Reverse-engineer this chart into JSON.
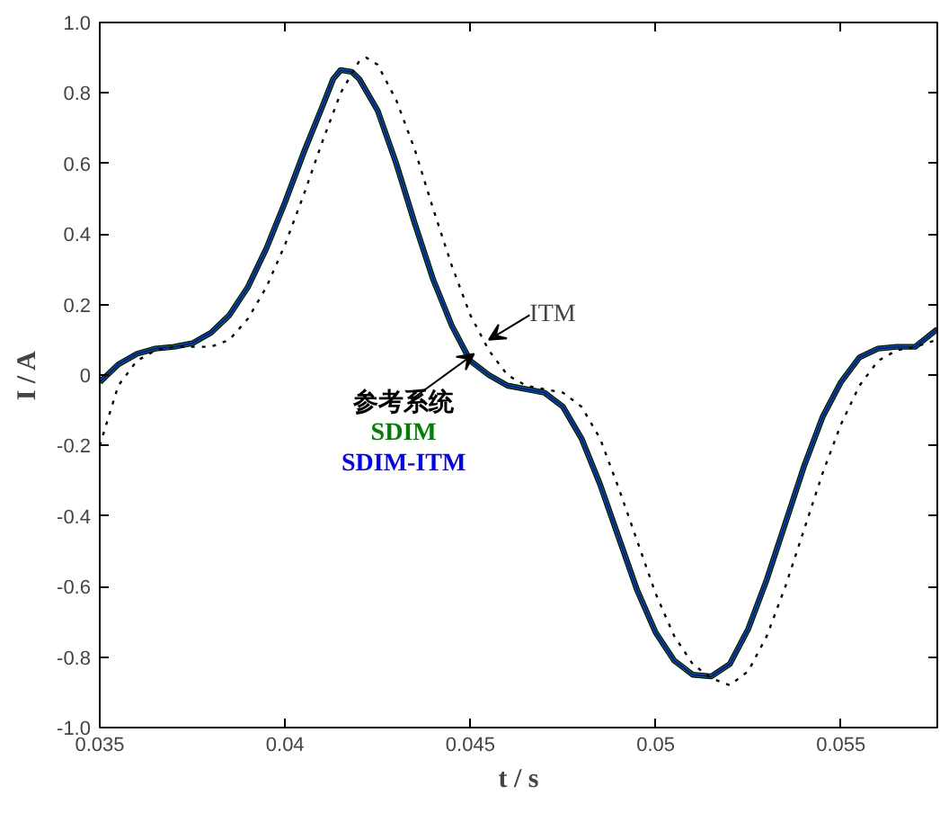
{
  "chart_data": {
    "type": "line",
    "xlabel": "t / s",
    "ylabel": "I / A",
    "xlim": [
      0.035,
      0.0576
    ],
    "ylim": [
      -1.0,
      1.0
    ],
    "xticks": [
      0.035,
      0.04,
      0.045,
      0.05,
      0.055
    ],
    "yticks": [
      {
        "value": -1.0,
        "label": "-1.0"
      },
      -0.8,
      -0.6,
      -0.4,
      -0.2,
      0,
      0.2,
      0.4,
      0.6,
      0.8,
      {
        "value": 1.0,
        "label": "1.0"
      }
    ],
    "x": [
      0.035,
      0.0355,
      0.036,
      0.0365,
      0.037,
      0.0375,
      0.038,
      0.0385,
      0.039,
      0.0395,
      0.04,
      0.0405,
      0.041,
      0.0413,
      0.0415,
      0.0418,
      0.042,
      0.0425,
      0.043,
      0.0435,
      0.044,
      0.0445,
      0.045,
      0.0455,
      0.046,
      0.0465,
      0.047,
      0.0475,
      0.048,
      0.0485,
      0.049,
      0.0495,
      0.05,
      0.0505,
      0.051,
      0.0515,
      0.052,
      0.0525,
      0.053,
      0.0535,
      0.054,
      0.0545,
      0.055,
      0.0555,
      0.056,
      0.0565,
      0.057,
      0.0576
    ],
    "series": [
      {
        "name": "参考系统",
        "color": "#000000",
        "line_style": "solid",
        "values": [
          -0.02,
          0.03,
          0.06,
          0.075,
          0.08,
          0.09,
          0.12,
          0.17,
          0.25,
          0.36,
          0.49,
          0.63,
          0.76,
          0.84,
          0.865,
          0.86,
          0.84,
          0.75,
          0.6,
          0.43,
          0.27,
          0.14,
          0.04,
          0.0,
          -0.03,
          -0.04,
          -0.05,
          -0.09,
          -0.18,
          -0.31,
          -0.46,
          -0.61,
          -0.73,
          -0.81,
          -0.85,
          -0.855,
          -0.82,
          -0.72,
          -0.58,
          -0.42,
          -0.26,
          -0.12,
          -0.02,
          0.05,
          0.075,
          0.08,
          0.08,
          0.13
        ]
      },
      {
        "name": "SDIM",
        "color": "#008000",
        "line_style": "solid",
        "values": [
          -0.02,
          0.03,
          0.06,
          0.075,
          0.08,
          0.09,
          0.12,
          0.17,
          0.25,
          0.36,
          0.49,
          0.63,
          0.76,
          0.84,
          0.865,
          0.86,
          0.84,
          0.75,
          0.6,
          0.43,
          0.27,
          0.14,
          0.04,
          0.0,
          -0.03,
          -0.04,
          -0.05,
          -0.09,
          -0.18,
          -0.31,
          -0.46,
          -0.61,
          -0.73,
          -0.81,
          -0.85,
          -0.855,
          -0.82,
          -0.72,
          -0.58,
          -0.42,
          -0.26,
          -0.12,
          -0.02,
          0.05,
          0.075,
          0.08,
          0.08,
          0.13
        ]
      },
      {
        "name": "SDIM-ITM",
        "color": "#0000ff",
        "line_style": "solid",
        "values": [
          -0.02,
          0.03,
          0.06,
          0.075,
          0.08,
          0.09,
          0.12,
          0.17,
          0.25,
          0.36,
          0.49,
          0.63,
          0.76,
          0.84,
          0.865,
          0.86,
          0.84,
          0.75,
          0.6,
          0.43,
          0.27,
          0.14,
          0.04,
          0.0,
          -0.03,
          -0.04,
          -0.05,
          -0.09,
          -0.18,
          -0.31,
          -0.46,
          -0.61,
          -0.73,
          -0.81,
          -0.85,
          -0.855,
          -0.82,
          -0.72,
          -0.58,
          -0.42,
          -0.26,
          -0.12,
          -0.02,
          0.05,
          0.075,
          0.08,
          0.08,
          0.13
        ]
      },
      {
        "name": "ITM",
        "color": "#000000",
        "line_style": "dotted",
        "x": [
          0.035,
          0.0355,
          0.036,
          0.0365,
          0.037,
          0.0375,
          0.038,
          0.0385,
          0.039,
          0.0395,
          0.04,
          0.0405,
          0.041,
          0.0415,
          0.042,
          0.0422,
          0.0425,
          0.043,
          0.0435,
          0.044,
          0.0445,
          0.045,
          0.0455,
          0.046,
          0.0465,
          0.047,
          0.0475,
          0.048,
          0.0485,
          0.049,
          0.0495,
          0.05,
          0.0505,
          0.051,
          0.0515,
          0.052,
          0.0525,
          0.053,
          0.0535,
          0.054,
          0.0545,
          0.055,
          0.0555,
          0.056,
          0.0565,
          0.057,
          0.0576
        ],
        "values": [
          -0.2,
          -0.03,
          0.04,
          0.07,
          0.08,
          0.08,
          0.08,
          0.1,
          0.16,
          0.25,
          0.37,
          0.51,
          0.66,
          0.8,
          0.89,
          0.9,
          0.88,
          0.78,
          0.64,
          0.47,
          0.31,
          0.17,
          0.07,
          0.0,
          -0.03,
          -0.04,
          -0.05,
          -0.09,
          -0.18,
          -0.32,
          -0.47,
          -0.62,
          -0.74,
          -0.82,
          -0.86,
          -0.88,
          -0.84,
          -0.74,
          -0.6,
          -0.44,
          -0.28,
          -0.14,
          -0.03,
          0.04,
          0.07,
          0.08,
          0.1
        ]
      }
    ],
    "legend": "center",
    "grid": false,
    "marker": "none"
  }
}
